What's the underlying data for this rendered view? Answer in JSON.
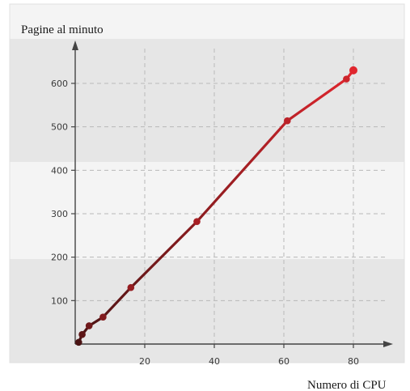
{
  "chart_data": {
    "type": "line",
    "title": "",
    "ylabel": "Pagine al minuto",
    "xlabel": "Numero di CPU",
    "xlim": [
      0,
      90
    ],
    "ylim": [
      0,
      680
    ],
    "x_ticks": [
      20,
      40,
      60,
      80
    ],
    "y_ticks": [
      100,
      200,
      300,
      400,
      500,
      600
    ],
    "grid": true,
    "series": [
      {
        "color": "#d42a32",
        "points": [
          {
            "x": 1,
            "y": 4
          },
          {
            "x": 2,
            "y": 22
          },
          {
            "x": 4,
            "y": 42
          },
          {
            "x": 8,
            "y": 62
          },
          {
            "x": 16,
            "y": 130
          },
          {
            "x": 35,
            "y": 282
          },
          {
            "x": 61,
            "y": 514
          },
          {
            "x": 78,
            "y": 610
          },
          {
            "x": 80,
            "y": 630
          }
        ]
      }
    ],
    "colors": {
      "line_start": "#4a1414",
      "line_end": "#e0262e",
      "band_dark": "#e6e6e6",
      "band_light": "#f4f4f4"
    }
  }
}
